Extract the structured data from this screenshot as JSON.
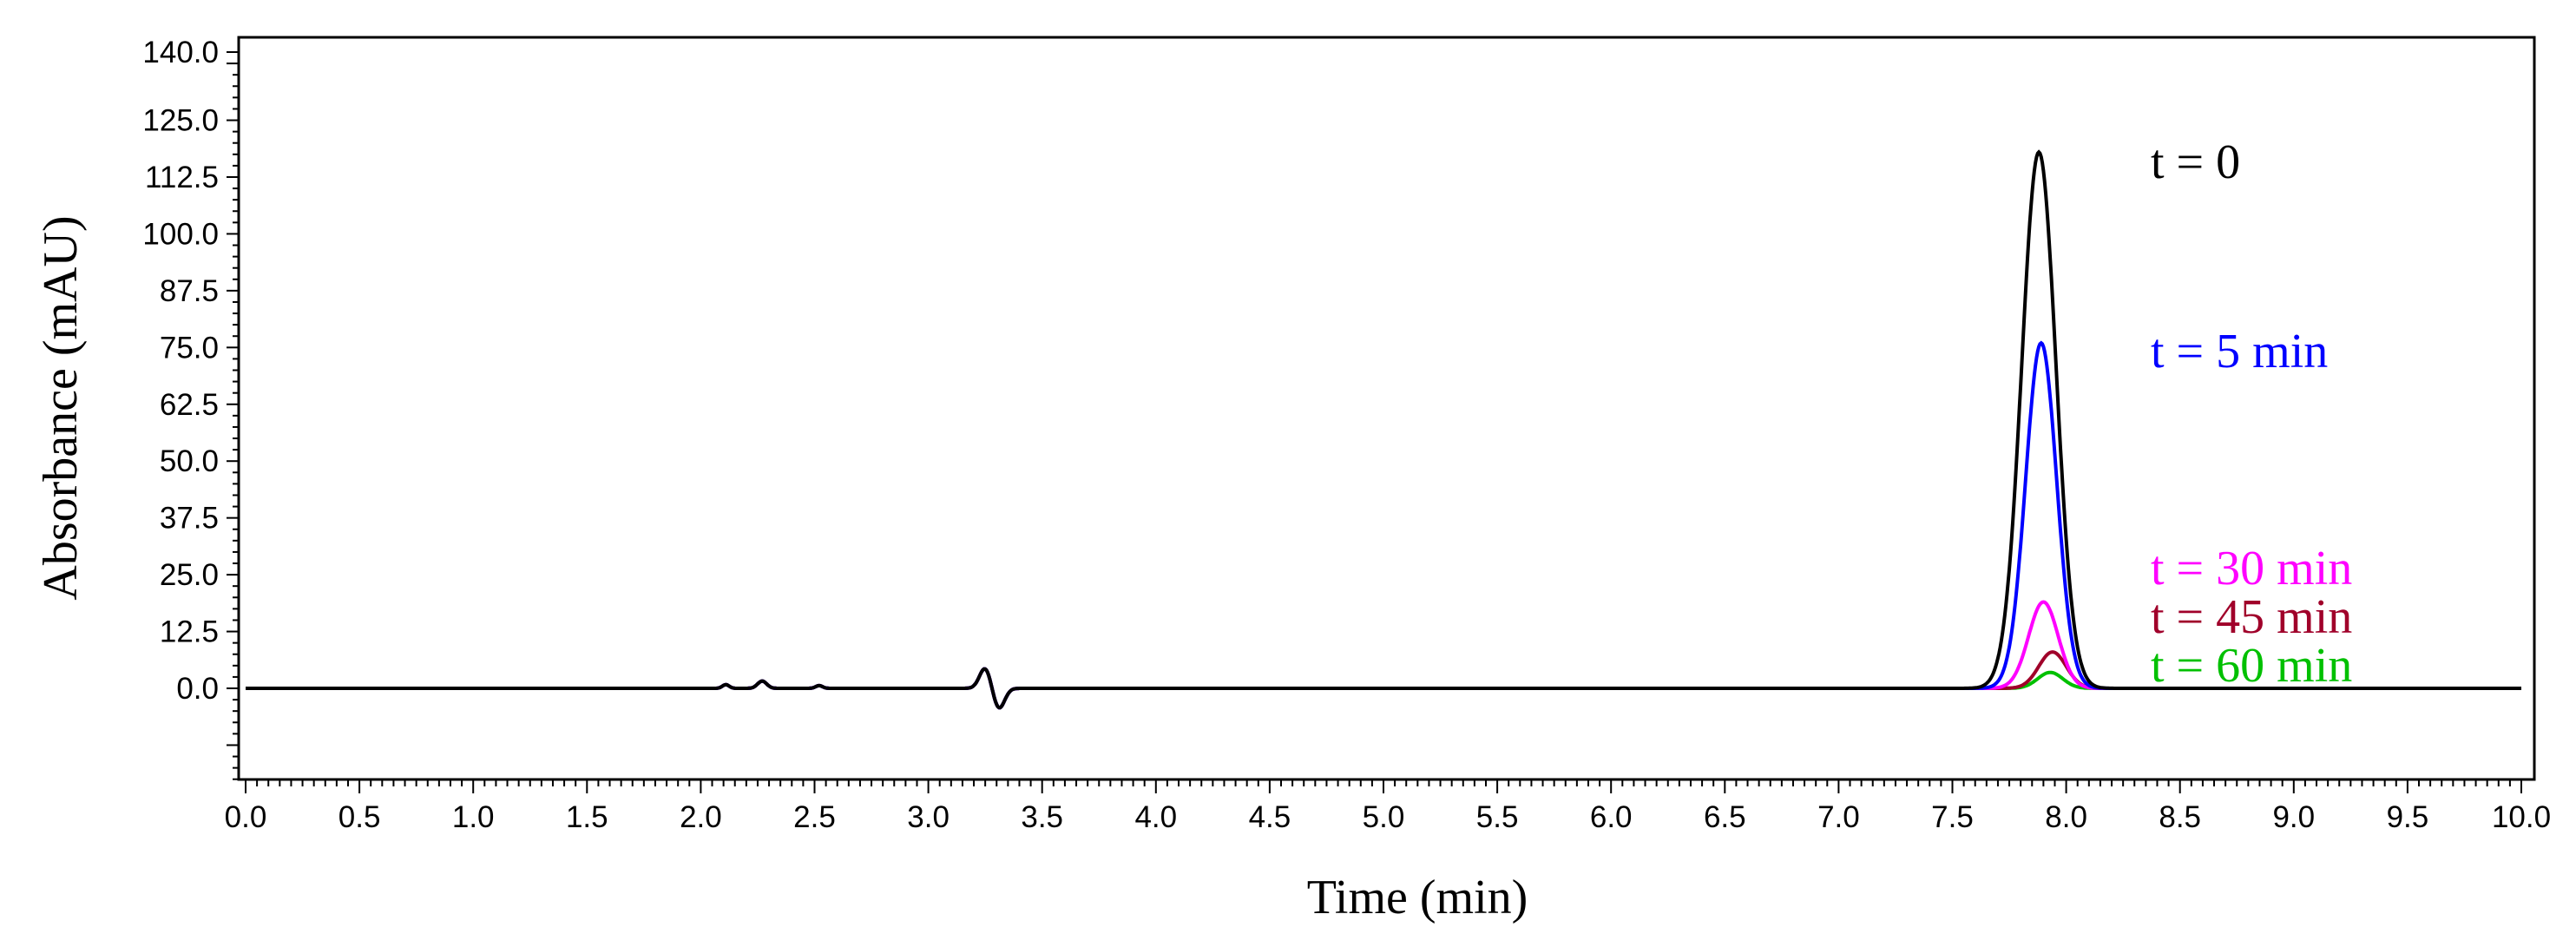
{
  "chart_data": {
    "type": "line",
    "xlabel": "Time (min)",
    "ylabel": "Absorbance (mAU)",
    "xlim": [
      0,
      10
    ],
    "ylim": [
      -20,
      140
    ],
    "x_ticks": [
      "0.0",
      "0.5",
      "1.0",
      "1.5",
      "2.0",
      "2.5",
      "3.0",
      "3.5",
      "4.0",
      "4.5",
      "5.0",
      "5.5",
      "6.0",
      "6.5",
      "7.0",
      "7.5",
      "8.0",
      "8.5",
      "9.0",
      "9.5",
      "10.0"
    ],
    "y_ticks": [
      "0.0",
      "12.5",
      "25.0",
      "37.5",
      "50.0",
      "62.5",
      "75.0",
      "87.5",
      "100.0",
      "112.5",
      "125.0",
      "140.0"
    ],
    "grid": false,
    "series": [
      {
        "name": "t = 0",
        "color": "#000000",
        "peak_time": 7.88,
        "peak_height": 118,
        "peak_width": 0.075
      },
      {
        "name": "t = 5 min",
        "color": "#0000ff",
        "peak_time": 7.89,
        "peak_height": 76,
        "peak_width": 0.068
      },
      {
        "name": "t = 30 min",
        "color": "#ff00ff",
        "peak_time": 7.9,
        "peak_height": 19,
        "peak_width": 0.065
      },
      {
        "name": "t = 45 min",
        "color": "#a0002a",
        "peak_time": 7.94,
        "peak_height": 8,
        "peak_width": 0.06
      },
      {
        "name": "t = 60 min",
        "color": "#00c000",
        "peak_time": 7.93,
        "peak_height": 3.5,
        "peak_width": 0.055
      }
    ],
    "annotations": [
      "t = 0",
      "t = 5 min",
      "t = 30 min",
      "t = 45 min",
      "t = 60 min"
    ]
  }
}
